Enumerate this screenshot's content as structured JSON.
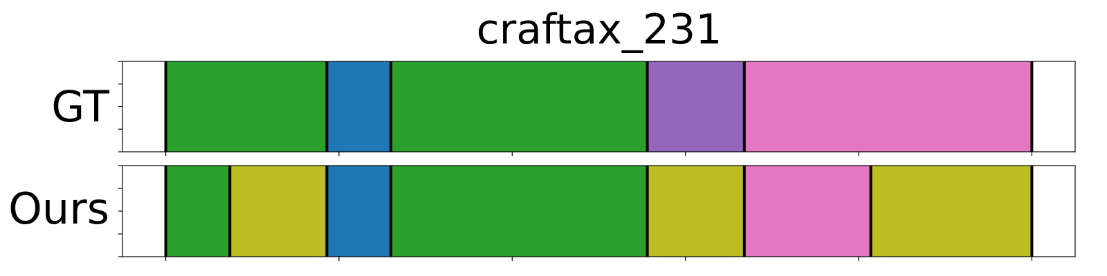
{
  "chart_data": {
    "type": "segment_timeline",
    "title": "craftax_231",
    "x_range": [
      -25,
      525
    ],
    "rows": [
      {
        "label": "GT",
        "segments": [
          {
            "start": 0,
            "end": 93,
            "color": "#2ca02c"
          },
          {
            "start": 93,
            "end": 130,
            "color": "#1f77b4"
          },
          {
            "start": 130,
            "end": 278,
            "color": "#2ca02c"
          },
          {
            "start": 278,
            "end": 334,
            "color": "#9467bd"
          },
          {
            "start": 334,
            "end": 500,
            "color": "#e377c2"
          }
        ]
      },
      {
        "label": "Ours",
        "segments": [
          {
            "start": 0,
            "end": 37,
            "color": "#2ca02c"
          },
          {
            "start": 37,
            "end": 93,
            "color": "#bcbd22"
          },
          {
            "start": 93,
            "end": 130,
            "color": "#1f77b4"
          },
          {
            "start": 130,
            "end": 278,
            "color": "#2ca02c"
          },
          {
            "start": 278,
            "end": 334,
            "color": "#bcbd22"
          },
          {
            "start": 334,
            "end": 407,
            "color": "#e377c2"
          },
          {
            "start": 407,
            "end": 500,
            "color": "#bcbd22"
          }
        ]
      }
    ],
    "x_ticks": [
      0,
      100,
      200,
      300,
      400,
      500
    ],
    "grid": false,
    "boundary_color": "#000000"
  }
}
